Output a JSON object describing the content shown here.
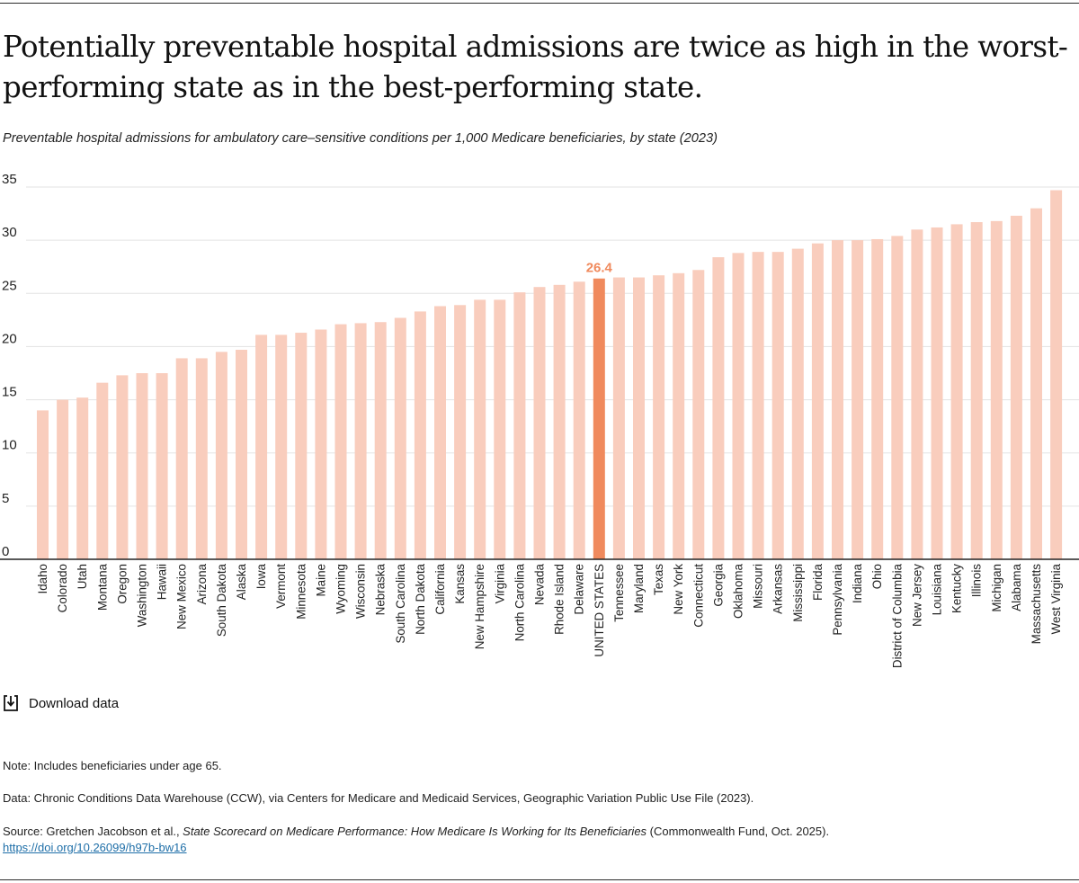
{
  "title": "Potentially preventable hospital admissions are twice as high in the worst-performing state as in the best-performing state.",
  "subtitle": "Preventable hospital admissions for ambulatory care–sensitive conditions per 1,000 Medicare beneficiaries, by state (2023)",
  "download_label": "Download data",
  "notes": {
    "note": "Note: Includes beneficiaries under age 65.",
    "data": "Data: Chronic Conditions Data Warehouse (CCW), via Centers for Medicare and Medicaid Services, Geographic Variation Public Use File (2023).",
    "source_prefix": "Source: Gretchen Jacobson et al., ",
    "source_title": "State Scorecard on Medicare Performance: How Medicare Is Working for Its Beneficiaries",
    "source_suffix": " (Commonwealth Fund, Oct. 2025).",
    "doi": "https://doi.org/10.26099/h97b-bw16"
  },
  "colors": {
    "bar": "#f9cdbd",
    "highlight": "#f08a5d",
    "highlight_label": "#f08a5d",
    "grid": "#e3e3e3",
    "axis": "#222222"
  },
  "chart_data": {
    "type": "bar",
    "categories": [
      "Idaho",
      "Colorado",
      "Utah",
      "Montana",
      "Oregon",
      "Washington",
      "Hawaii",
      "New Mexico",
      "Arizona",
      "South Dakota",
      "Alaska",
      "Iowa",
      "Vermont",
      "Minnesota",
      "Maine",
      "Wyoming",
      "Wisconsin",
      "Nebraska",
      "South Carolina",
      "North Dakota",
      "California",
      "Kansas",
      "New Hampshire",
      "Virginia",
      "North Carolina",
      "Nevada",
      "Rhode Island",
      "Delaware",
      "UNITED STATES",
      "Tennessee",
      "Maryland",
      "Texas",
      "New York",
      "Connecticut",
      "Georgia",
      "Oklahoma",
      "Missouri",
      "Arkansas",
      "Mississippi",
      "Florida",
      "Pennsylvania",
      "Indiana",
      "Ohio",
      "District of Columbia",
      "New Jersey",
      "Louisiana",
      "Kentucky",
      "Illinois",
      "Michigan",
      "Alabama",
      "Massachusetts",
      "West Virginia"
    ],
    "values": [
      14.0,
      15.0,
      15.2,
      16.6,
      17.3,
      17.5,
      17.5,
      18.9,
      18.9,
      19.5,
      19.7,
      21.1,
      21.1,
      21.3,
      21.6,
      22.1,
      22.2,
      22.3,
      22.7,
      23.3,
      23.8,
      23.9,
      24.4,
      24.4,
      25.1,
      25.6,
      25.8,
      26.1,
      26.4,
      26.5,
      26.5,
      26.7,
      26.9,
      27.2,
      28.4,
      28.8,
      28.9,
      28.9,
      29.2,
      29.7,
      30.0,
      30.0,
      30.1,
      30.4,
      31.0,
      31.2,
      31.5,
      31.7,
      31.8,
      32.3,
      33.0,
      34.7
    ],
    "highlight": "UNITED STATES",
    "highlight_label": "26.4",
    "yticks": [
      0,
      5,
      10,
      15,
      20,
      25,
      30,
      35
    ],
    "ylim": [
      0,
      35
    ],
    "xlabel": "",
    "ylabel": "",
    "grid": true
  }
}
